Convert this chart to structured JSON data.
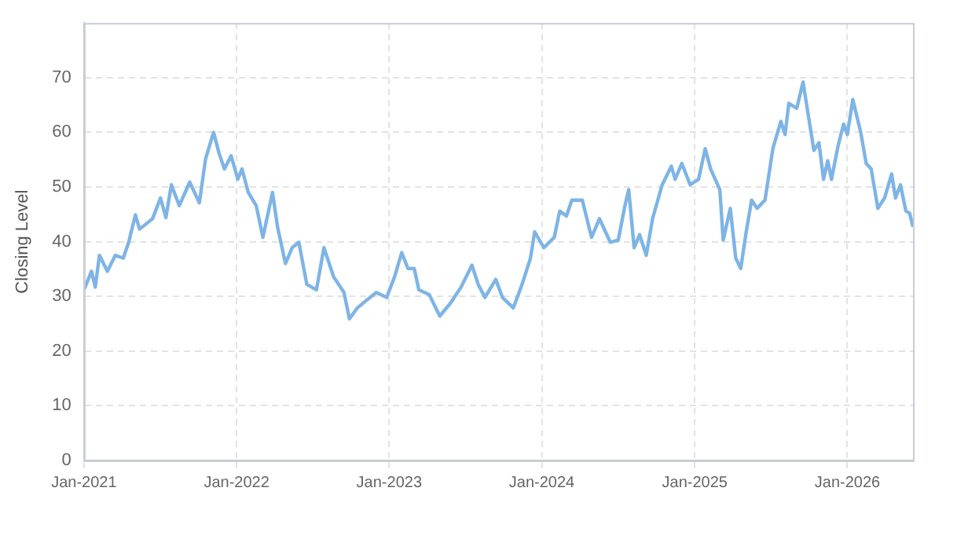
{
  "chart_data": {
    "type": "line",
    "ylabel": "Closing Level",
    "x": [
      "2021-01-01",
      "2021-01-19",
      "2021-01-28",
      "2021-02-07",
      "2021-02-26",
      "2021-03-17",
      "2021-04-05",
      "2021-04-18",
      "2021-05-04",
      "2021-05-14",
      "2021-06-14",
      "2021-07-03",
      "2021-07-16",
      "2021-07-29",
      "2021-08-17",
      "2021-09-11",
      "2021-10-04",
      "2021-10-19",
      "2021-11-07",
      "2021-11-20",
      "2021-12-03",
      "2021-12-19",
      "2022-01-04",
      "2022-01-14",
      "2022-01-29",
      "2022-02-17",
      "2022-03-05",
      "2022-03-28",
      "2022-04-09",
      "2022-04-28",
      "2022-05-14",
      "2022-05-30",
      "2022-06-18",
      "2022-07-11",
      "2022-07-29",
      "2022-08-21",
      "2022-09-15",
      "2022-09-28",
      "2022-10-17",
      "2022-11-08",
      "2022-12-01",
      "2022-12-26",
      "2023-01-14",
      "2023-01-31",
      "2023-02-15",
      "2023-03-02",
      "2023-03-13",
      "2023-04-07",
      "2023-05-02",
      "2023-05-28",
      "2023-06-22",
      "2023-07-18",
      "2023-08-02",
      "2023-08-18",
      "2023-09-13",
      "2023-09-29",
      "2023-10-25",
      "2023-11-15",
      "2023-12-05",
      "2023-12-15",
      "2024-01-06",
      "2024-01-31",
      "2024-02-13",
      "2024-02-29",
      "2024-03-13",
      "2024-04-07",
      "2024-04-29",
      "2024-05-18",
      "2024-06-13",
      "2024-07-02",
      "2024-07-18",
      "2024-07-27",
      "2024-08-09",
      "2024-08-22",
      "2024-09-07",
      "2024-09-22",
      "2024-10-15",
      "2024-11-06",
      "2024-11-15",
      "2024-12-01",
      "2024-12-21",
      "2025-01-10",
      "2025-01-26",
      "2025-02-08",
      "2025-03-02",
      "2025-03-10",
      "2025-03-27",
      "2025-04-09",
      "2025-04-21",
      "2025-05-04",
      "2025-05-17",
      "2025-05-30",
      "2025-06-18",
      "2025-07-07",
      "2025-07-26",
      "2025-08-05",
      "2025-08-14",
      "2025-09-02",
      "2025-09-17",
      "2025-09-30",
      "2025-10-13",
      "2025-10-25",
      "2025-11-05",
      "2025-11-15",
      "2025-11-24",
      "2025-12-10",
      "2025-12-23",
      "2026-01-01",
      "2026-01-14",
      "2026-02-02",
      "2026-02-15",
      "2026-02-27",
      "2026-03-15",
      "2026-03-31",
      "2026-04-17",
      "2026-04-26",
      "2026-05-08",
      "2026-05-21",
      "2026-05-30",
      "2026-06-07"
    ],
    "series": [
      {
        "color": "#7eb4e6",
        "values": [
          31.2,
          34.6,
          31.7,
          37.5,
          34.6,
          37.5,
          37,
          39.9,
          44.9,
          42.3,
          44.2,
          48,
          44.4,
          50.4,
          46.6,
          50.9,
          47.1,
          55.2,
          60,
          56.2,
          53.3,
          55.7,
          51.4,
          53.3,
          49,
          46.6,
          40.8,
          49,
          42.7,
          36,
          38.9,
          39.9,
          32.2,
          31.2,
          38.9,
          33.6,
          30.7,
          25.9,
          27.9,
          29.3,
          30.7,
          29.8,
          33.6,
          38,
          35.1,
          35.1,
          31.2,
          30.3,
          26.4,
          28.8,
          31.7,
          35.7,
          32.2,
          29.8,
          33.1,
          29.8,
          27.9,
          32.2,
          37,
          41.8,
          38.9,
          40.8,
          45.6,
          44.7,
          47.6,
          47.6,
          40.8,
          44.2,
          39.9,
          40.3,
          46.6,
          49.5,
          38.9,
          41.3,
          37.5,
          44.2,
          50.4,
          53.8,
          51.4,
          54.3,
          50.4,
          51.4,
          57,
          53.3,
          49.5,
          40.3,
          46.1,
          37,
          35.1,
          41.8,
          47.6,
          46.1,
          47.6,
          57.1,
          62,
          59.6,
          65.3,
          64.4,
          69.2,
          62.9,
          56.7,
          58.1,
          51.4,
          54.8,
          51.4,
          57.6,
          61.5,
          59.6,
          66,
          60,
          54.3,
          53.3,
          46.1,
          48,
          52.4,
          48,
          50.4,
          45.6,
          45.2,
          42.7
        ]
      }
    ],
    "xlim": [
      "2021-01-01",
      "2026-06-07"
    ],
    "xticks": [
      {
        "value": "2021-01-01",
        "label": "Jan-2021"
      },
      {
        "value": "2022-01-01",
        "label": "Jan-2022"
      },
      {
        "value": "2023-01-01",
        "label": "Jan-2023"
      },
      {
        "value": "2024-01-01",
        "label": "Jan-2024"
      },
      {
        "value": "2025-01-01",
        "label": "Jan-2025"
      },
      {
        "value": "2026-01-01",
        "label": "Jan-2026"
      }
    ],
    "ylim": [
      0,
      80
    ],
    "yticks": [
      0,
      10,
      20,
      30,
      40,
      50,
      60,
      70
    ],
    "grid": true,
    "legend": false,
    "marker": "none",
    "line_style": "solid"
  }
}
